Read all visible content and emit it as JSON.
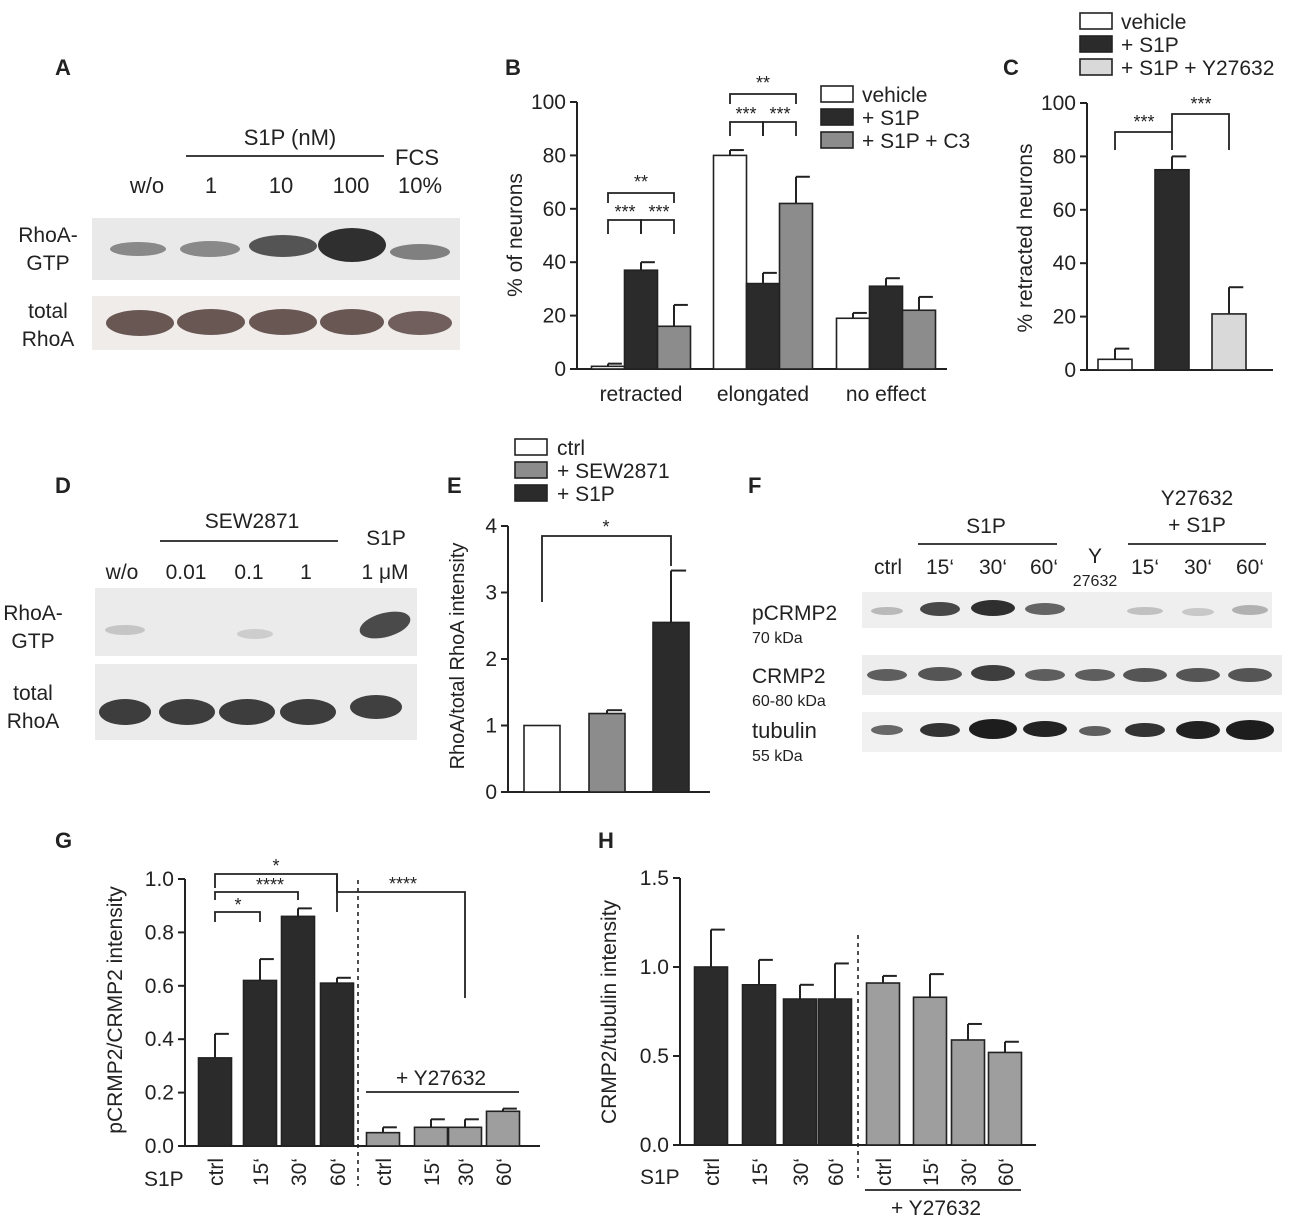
{
  "colors": {
    "white": "#ffffff",
    "black_bar": "#2b2b2b",
    "gray_bar": "#8c8c8c",
    "light_bar": "#d9d9d9",
    "G_gray_bar": "#9e9e9e",
    "blot_band": "#2e2e2e",
    "blot_band_brown": "#5a4744"
  },
  "panels": {
    "A": {
      "letter": "A",
      "group_label": "S1P (nM)",
      "lanes": [
        "w/o",
        "1",
        "10",
        "100"
      ],
      "fcs_top": "FCS",
      "fcs_bottom": "10%",
      "row1_label": [
        "RhoA-",
        "GTP"
      ],
      "row2_label": [
        "total",
        "RhoA"
      ]
    },
    "D": {
      "letter": "D",
      "group_label": "SEW2871",
      "lanes": [
        "w/o",
        "0.01",
        "0.1",
        "1"
      ],
      "s1p_top": "S1P",
      "s1p_bottom": "1 μM",
      "row1_label": [
        "RhoA-",
        "GTP"
      ],
      "row2_label": [
        "total",
        "RhoA"
      ]
    },
    "F": {
      "letter": "F",
      "s1p_group": "S1P",
      "y_group_line1": "Y27632",
      "y_group_line2": "+ S1P",
      "lanes": [
        "ctrl",
        "15‘",
        "30‘",
        "60‘",
        "15‘",
        "30‘",
        "60‘"
      ],
      "y_lane_top": "Y",
      "y_lane_bottom": "27632",
      "rows": [
        {
          "name": "pCRMP2",
          "kda": "70 kDa"
        },
        {
          "name": "CRMP2",
          "kda": "60-80 kDa"
        },
        {
          "name": "tubulin",
          "kda": "55 kDa"
        }
      ]
    }
  },
  "chart_data": [
    {
      "panel": "B",
      "type": "bar",
      "ylabel": "% of neurons",
      "ylim": [
        0,
        100
      ],
      "yticks": [
        "0",
        "20",
        "40",
        "60",
        "80",
        "100"
      ],
      "categories": [
        "retracted",
        "elongated",
        "no effect"
      ],
      "series": [
        {
          "name": "vehicle",
          "values": [
            1,
            80,
            19
          ],
          "errors": [
            1,
            2,
            2
          ]
        },
        {
          "name": "+ S1P",
          "values": [
            37,
            32,
            31
          ],
          "errors": [
            3,
            4,
            3
          ]
        },
        {
          "name": "+ S1P + C3",
          "values": [
            16,
            62,
            22
          ],
          "errors": [
            8,
            10,
            5
          ]
        }
      ],
      "significance": [
        "**",
        "***",
        "***",
        "**",
        "***",
        "***"
      ],
      "legend": "top-right"
    },
    {
      "panel": "C",
      "type": "bar",
      "ylabel": "% retracted neurons",
      "ylim": [
        0,
        100
      ],
      "yticks": [
        "0",
        "20",
        "40",
        "60",
        "80",
        "100"
      ],
      "series": [
        {
          "name": "vehicle",
          "value": 4,
          "error": 4
        },
        {
          "name": "+ S1P",
          "value": 75,
          "error": 5
        },
        {
          "name": "+ S1P + Y27632",
          "value": 21,
          "error": 10
        }
      ],
      "significance": [
        "***",
        "***"
      ],
      "legend": "top"
    },
    {
      "panel": "E",
      "type": "bar",
      "ylabel": "RhoA/total RhoA intensity",
      "ylim": [
        0,
        4
      ],
      "yticks": [
        "0",
        "1",
        "2",
        "3",
        "4"
      ],
      "series": [
        {
          "name": "ctrl",
          "value": 1.0,
          "error": 0
        },
        {
          "name": "+ SEW2871",
          "value": 1.18,
          "error": 0.05
        },
        {
          "name": "+ S1P",
          "value": 2.55,
          "error": 0.78
        }
      ],
      "significance": [
        "*"
      ],
      "legend": "top"
    },
    {
      "panel": "G",
      "type": "bar",
      "ylabel": "pCRMP2/CRMP2 intensity",
      "ylim": [
        0,
        1.0
      ],
      "yticks": [
        "0.0",
        "0.2",
        "0.4",
        "0.6",
        "0.8",
        "1.0"
      ],
      "row_label": "S1P",
      "categories": [
        "ctrl",
        "15‘",
        "30‘",
        "60‘",
        "ctrl",
        "15‘",
        "30‘",
        "60‘"
      ],
      "values": [
        0.33,
        0.62,
        0.86,
        0.61,
        0.05,
        0.07,
        0.07,
        0.13
      ],
      "errors": [
        0.09,
        0.08,
        0.03,
        0.02,
        0.02,
        0.03,
        0.03,
        0.01
      ],
      "group_label": "+ Y27632",
      "significance": [
        "*",
        "****",
        "*",
        "****"
      ]
    },
    {
      "panel": "H",
      "type": "bar",
      "ylabel": "CRMP2/tubulin intensity",
      "ylim": [
        0,
        1.5
      ],
      "yticks": [
        "0.0",
        "0.5",
        "1.0",
        "1.5"
      ],
      "row_label": "S1P",
      "categories": [
        "ctrl",
        "15‘",
        "30‘",
        "60‘",
        "ctrl",
        "15‘",
        "30‘",
        "60‘"
      ],
      "values": [
        1.0,
        0.9,
        0.82,
        0.82,
        0.91,
        0.83,
        0.59,
        0.52
      ],
      "errors": [
        0.21,
        0.14,
        0.08,
        0.2,
        0.04,
        0.13,
        0.09,
        0.06
      ],
      "group_label": "+ Y27632"
    }
  ]
}
